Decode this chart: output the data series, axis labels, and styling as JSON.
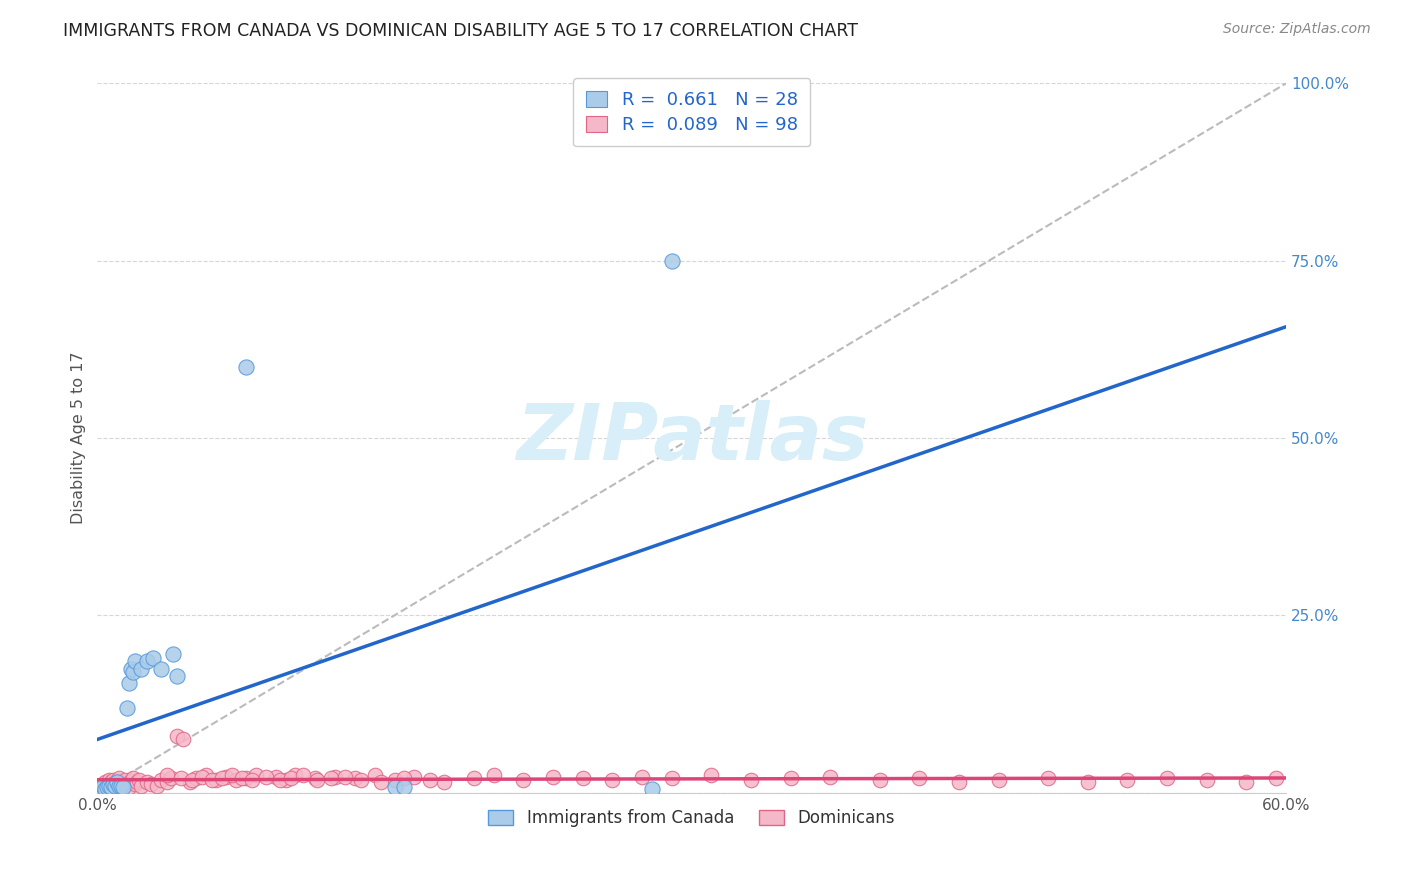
{
  "title": "IMMIGRANTS FROM CANADA VS DOMINICAN DISABILITY AGE 5 TO 17 CORRELATION CHART",
  "source": "Source: ZipAtlas.com",
  "ylabel": "Disability Age 5 to 17",
  "legend_canada_label": "Immigrants from Canada",
  "legend_dominican_label": "Dominicans",
  "canada_R": 0.661,
  "canada_N": 28,
  "dominican_R": 0.089,
  "dominican_N": 98,
  "canada_color": "#aacce8",
  "canada_edge_color": "#5599dd",
  "canada_line_color": "#2266cc",
  "dominican_color": "#f5b8c8",
  "dominican_edge_color": "#e06688",
  "dominican_line_color": "#dd4477",
  "ref_line_color": "#bbbbbb",
  "grid_color": "#cccccc",
  "title_color": "#222222",
  "source_color": "#888888",
  "label_color": "#555555",
  "tick_color_y": "#4488cc",
  "watermark_color": "#d8eef8",
  "background_color": "#ffffff",
  "xmin": 0.0,
  "xmax": 0.6,
  "ymin": 0.0,
  "ymax": 1.0,
  "canada_x": [
    0.002,
    0.003,
    0.004,
    0.005,
    0.006,
    0.007,
    0.008,
    0.009,
    0.01,
    0.011,
    0.012,
    0.013,
    0.015,
    0.016,
    0.017,
    0.018,
    0.019,
    0.022,
    0.025,
    0.028,
    0.032,
    0.038,
    0.04,
    0.075,
    0.15,
    0.155,
    0.28,
    0.29
  ],
  "canada_y": [
    0.005,
    0.01,
    0.005,
    0.008,
    0.01,
    0.008,
    0.012,
    0.01,
    0.015,
    0.01,
    0.01,
    0.008,
    0.12,
    0.155,
    0.175,
    0.17,
    0.185,
    0.175,
    0.185,
    0.19,
    0.175,
    0.195,
    0.165,
    0.6,
    0.008,
    0.008,
    0.005,
    0.75
  ],
  "dominican_x": [
    0.002,
    0.003,
    0.003,
    0.004,
    0.004,
    0.005,
    0.005,
    0.006,
    0.006,
    0.007,
    0.007,
    0.008,
    0.008,
    0.009,
    0.01,
    0.01,
    0.011,
    0.011,
    0.012,
    0.013,
    0.014,
    0.015,
    0.016,
    0.017,
    0.018,
    0.019,
    0.02,
    0.021,
    0.022,
    0.025,
    0.027,
    0.03,
    0.032,
    0.035,
    0.037,
    0.04,
    0.043,
    0.047,
    0.05,
    0.055,
    0.06,
    0.065,
    0.07,
    0.075,
    0.08,
    0.09,
    0.095,
    0.1,
    0.11,
    0.12,
    0.13,
    0.14,
    0.15,
    0.16,
    0.175,
    0.19,
    0.2,
    0.215,
    0.23,
    0.245,
    0.26,
    0.275,
    0.29,
    0.31,
    0.33,
    0.35,
    0.37,
    0.395,
    0.415,
    0.435,
    0.455,
    0.48,
    0.5,
    0.52,
    0.54,
    0.56,
    0.58,
    0.595,
    0.035,
    0.042,
    0.048,
    0.053,
    0.058,
    0.063,
    0.068,
    0.073,
    0.078,
    0.085,
    0.092,
    0.098,
    0.104,
    0.111,
    0.118,
    0.125,
    0.133,
    0.143,
    0.155,
    0.168
  ],
  "dominican_y": [
    0.01,
    0.005,
    0.012,
    0.008,
    0.015,
    0.01,
    0.006,
    0.012,
    0.018,
    0.008,
    0.015,
    0.01,
    0.018,
    0.014,
    0.008,
    0.016,
    0.012,
    0.02,
    0.01,
    0.014,
    0.018,
    0.012,
    0.008,
    0.016,
    0.02,
    0.012,
    0.015,
    0.018,
    0.01,
    0.015,
    0.012,
    0.01,
    0.018,
    0.015,
    0.02,
    0.08,
    0.075,
    0.015,
    0.02,
    0.025,
    0.018,
    0.022,
    0.018,
    0.02,
    0.025,
    0.022,
    0.018,
    0.025,
    0.02,
    0.022,
    0.02,
    0.025,
    0.018,
    0.022,
    0.015,
    0.02,
    0.025,
    0.018,
    0.022,
    0.02,
    0.018,
    0.022,
    0.02,
    0.025,
    0.018,
    0.02,
    0.022,
    0.018,
    0.02,
    0.015,
    0.018,
    0.02,
    0.015,
    0.018,
    0.02,
    0.018,
    0.015,
    0.02,
    0.025,
    0.02,
    0.018,
    0.022,
    0.018,
    0.02,
    0.025,
    0.02,
    0.018,
    0.022,
    0.018,
    0.02,
    0.025,
    0.018,
    0.02,
    0.022,
    0.018,
    0.015,
    0.02,
    0.018
  ]
}
